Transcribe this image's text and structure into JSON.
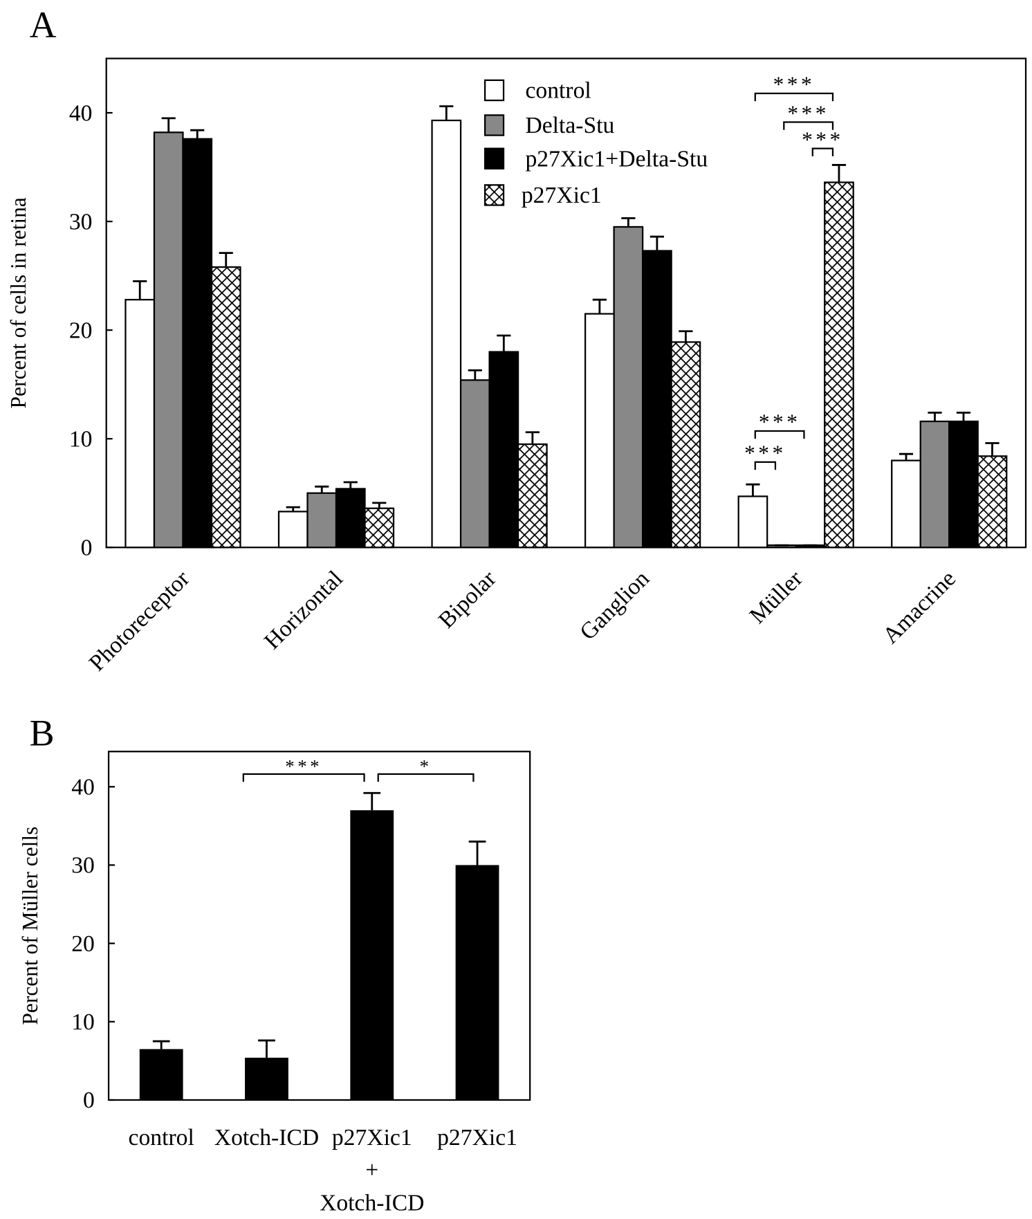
{
  "chart_data": [
    {
      "type": "bar",
      "panel_label": "A",
      "y_label": "Percent of cells in retina",
      "categories": [
        "Photoreceptor",
        "Horizontal",
        "Bipolar",
        "Ganglion",
        "Müller",
        "Amacrine"
      ],
      "series": [
        {
          "name": "control",
          "color": "#ffffff",
          "values": [
            22.8,
            3.3,
            39.3,
            21.5,
            4.7,
            8.0
          ],
          "errors": [
            1.7,
            0.4,
            1.3,
            1.3,
            1.1,
            0.6
          ]
        },
        {
          "name": "Delta-Stu",
          "color": "#888888",
          "values": [
            38.2,
            5.0,
            15.4,
            29.5,
            0.2,
            11.6
          ],
          "errors": [
            1.3,
            0.6,
            0.9,
            0.8,
            0,
            0.8
          ]
        },
        {
          "name": "p27Xic1+Delta-Stu",
          "color": "#000000",
          "values": [
            37.6,
            5.4,
            18.0,
            27.3,
            0.2,
            11.6
          ],
          "errors": [
            0.8,
            0.6,
            1.5,
            1.3,
            0,
            0.8
          ]
        },
        {
          "name": "p27Xic1",
          "color": "#000000",
          "hatch": true,
          "values": [
            25.8,
            3.6,
            9.5,
            18.9,
            33.6,
            8.4
          ],
          "errors": [
            1.3,
            0.5,
            1.1,
            1.0,
            1.6,
            1.2
          ]
        }
      ],
      "ylim": [
        0,
        45
      ],
      "yticks": [
        0,
        10,
        20,
        30,
        40
      ],
      "annotations": [
        "***",
        "***",
        "***",
        "***",
        "***"
      ]
    },
    {
      "type": "bar",
      "panel_label": "B",
      "y_label": "Percent of Müller cells",
      "categories": [
        "control",
        "Xotch-ICD",
        "p27Xic1\n+\nXotch-ICD",
        "p27Xic1"
      ],
      "values": [
        6.5,
        5.4,
        37,
        30
      ],
      "errors": [
        1.0,
        2.2,
        2.2,
        3.0
      ],
      "color": "#000000",
      "ylim": [
        0,
        44.5
      ],
      "yticks": [
        0,
        10,
        20,
        30,
        40
      ],
      "annotations": [
        "***",
        "*"
      ]
    }
  ]
}
